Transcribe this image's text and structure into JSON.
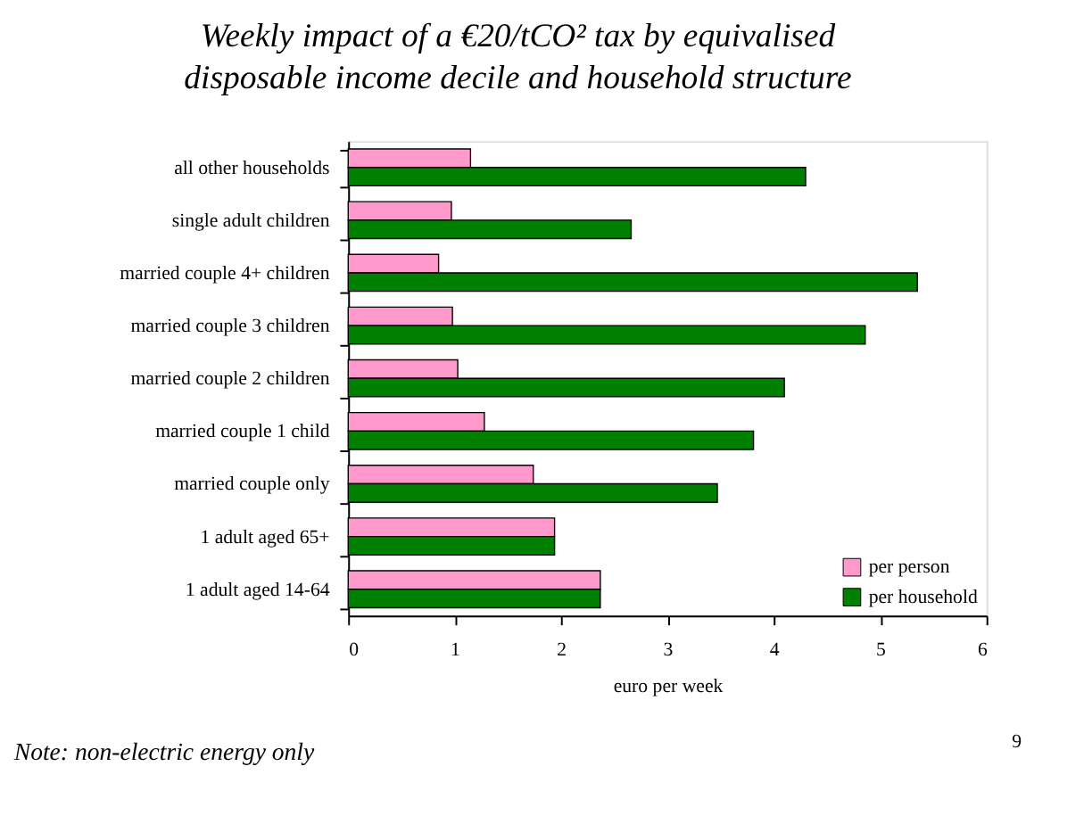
{
  "chart_data": {
    "type": "bar",
    "orientation": "horizontal",
    "title": "Weekly impact of a €20/tCO² tax by equivalised disposable income decile and household structure",
    "categories": [
      "all other households",
      "single adult children",
      "married couple 4+ children",
      "married couple 3 children",
      "married couple 2 children",
      "married couple 1 child",
      "married couple only",
      "1 adult aged 65+",
      "1 adult aged 14-64"
    ],
    "series": [
      {
        "name": "per person",
        "color": "#ff99cc",
        "values": [
          1.15,
          0.97,
          0.85,
          0.98,
          1.03,
          1.28,
          1.74,
          1.94,
          2.37
        ]
      },
      {
        "name": "per household",
        "color": "#008000",
        "values": [
          4.3,
          2.66,
          5.35,
          4.86,
          4.1,
          3.81,
          3.47,
          1.94,
          2.37
        ]
      }
    ],
    "xlim": [
      0,
      6
    ],
    "xticks": [
      0,
      1,
      2,
      3,
      4,
      5,
      6
    ],
    "xlabel": "euro per week",
    "grid": false,
    "legend": "bottom right",
    "annotations": [
      "Note: non-electric energy only",
      "9"
    ]
  }
}
